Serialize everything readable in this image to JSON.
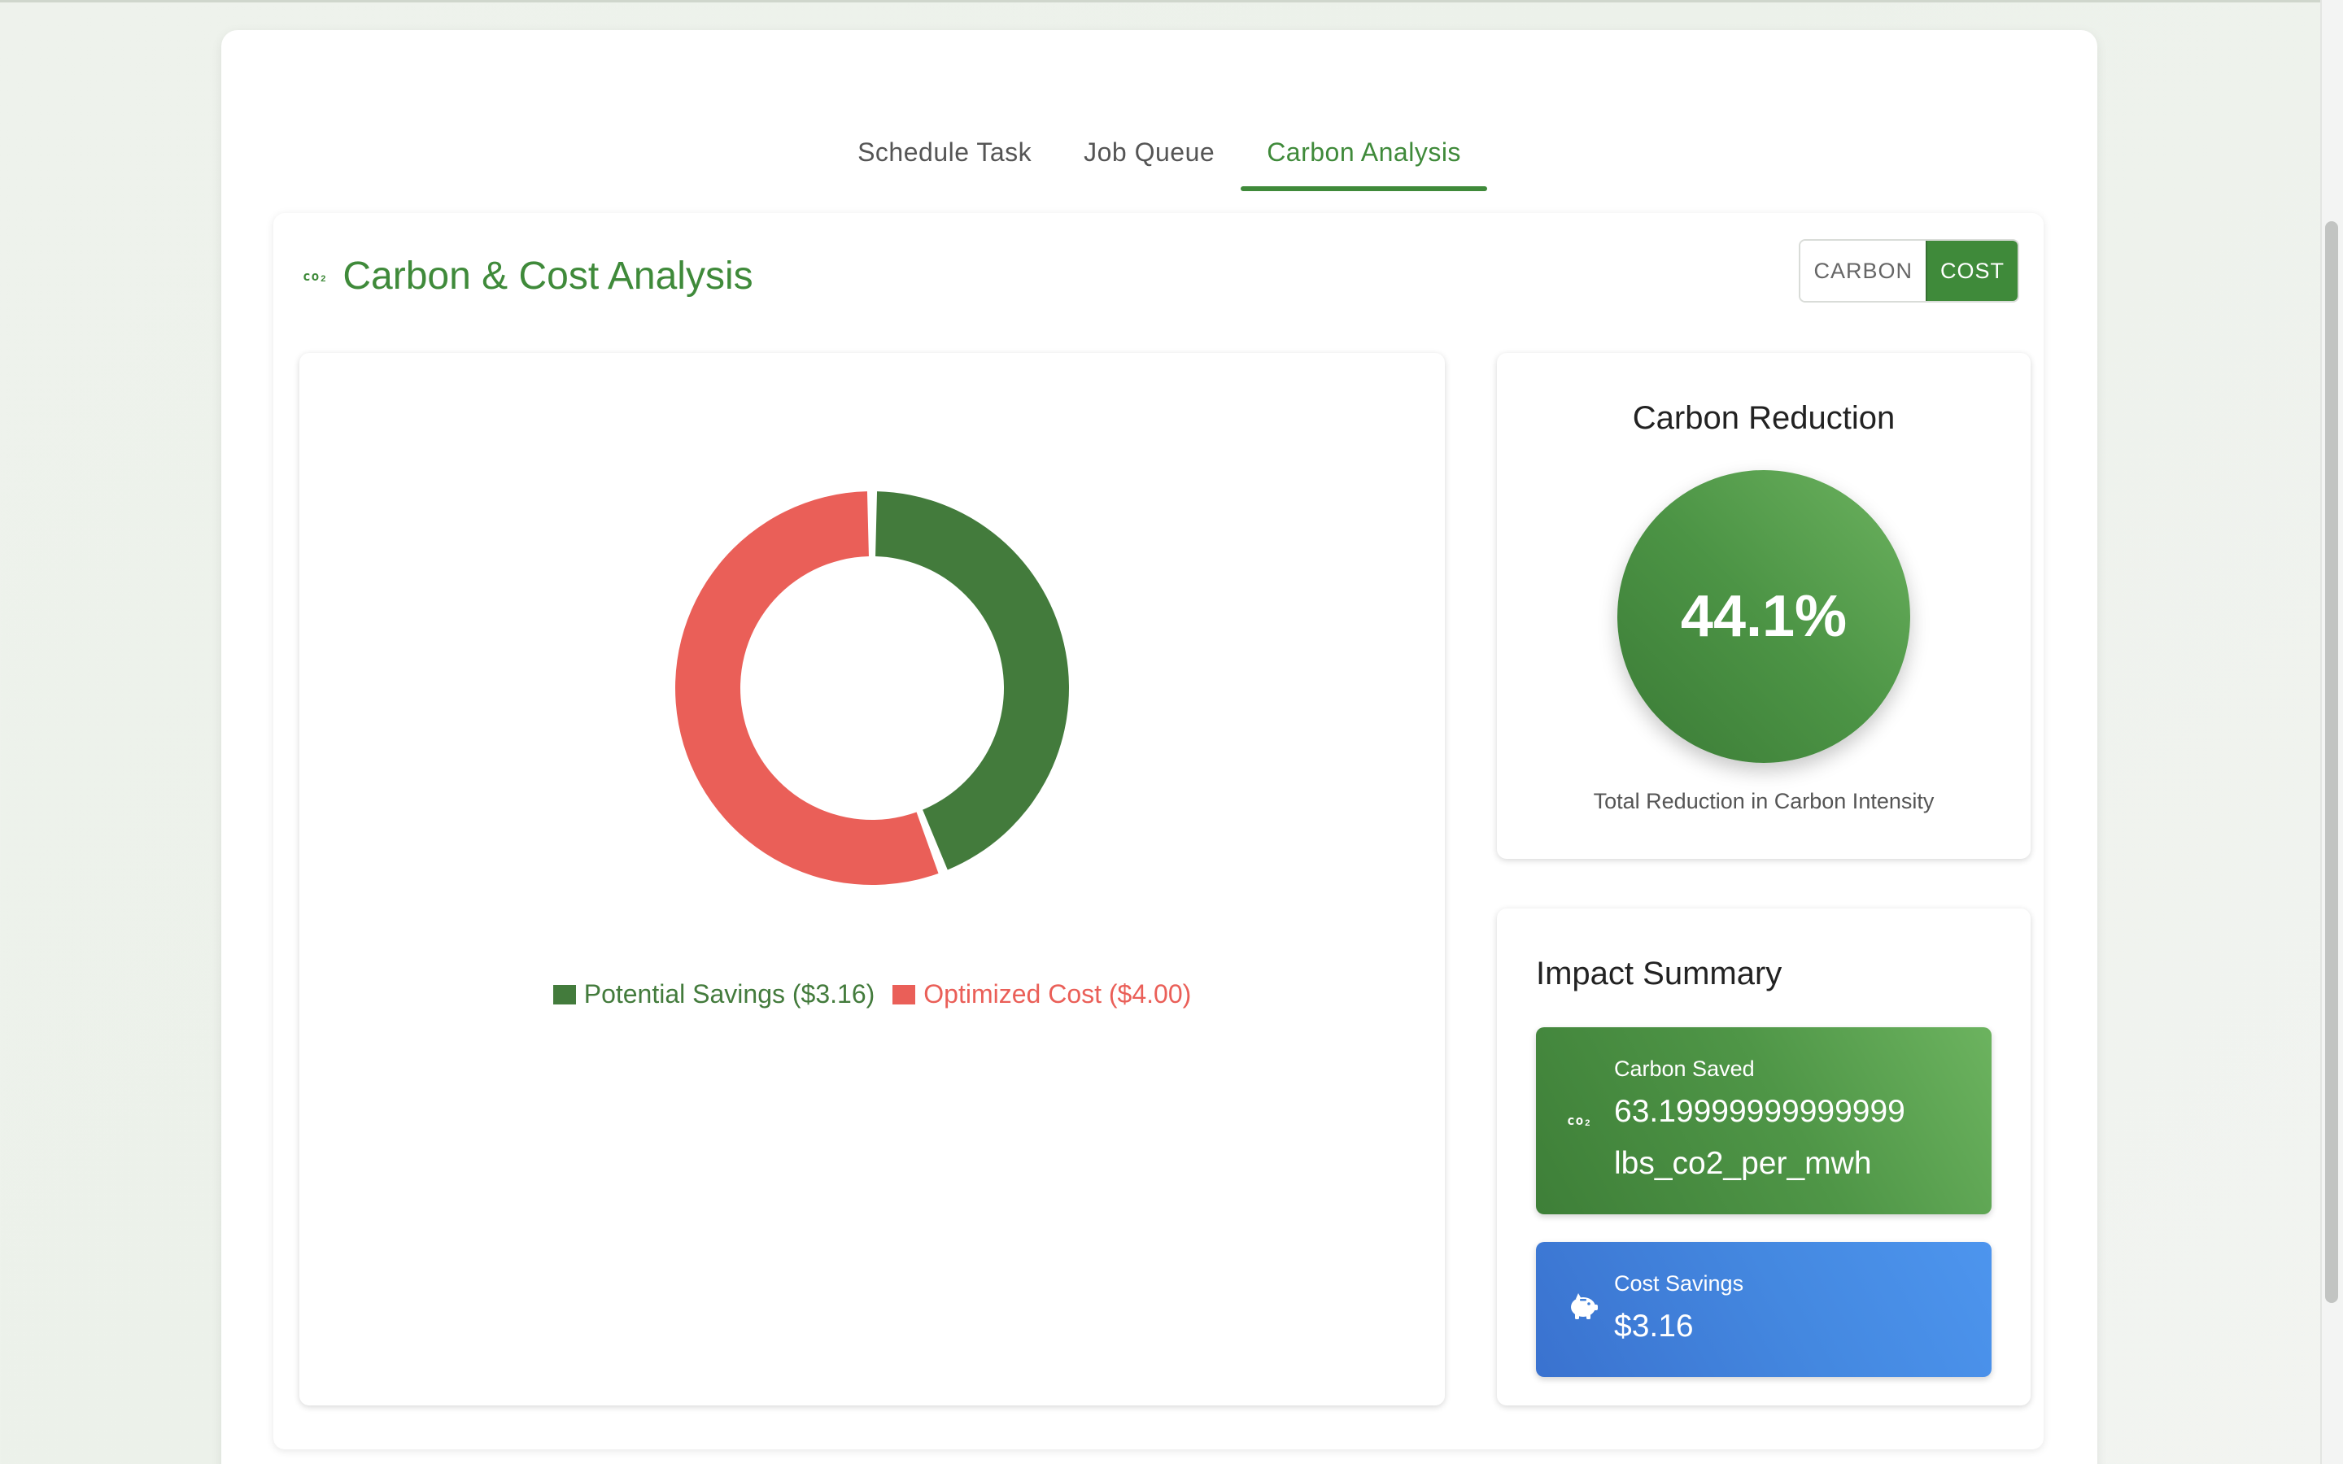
{
  "tabs": [
    {
      "label": "Schedule Task"
    },
    {
      "label": "Job Queue"
    },
    {
      "label": "Carbon Analysis"
    }
  ],
  "analysis": {
    "icon": "co2-icon",
    "title": "Carbon & Cost Analysis",
    "toggle": {
      "carbon": "CARBON",
      "cost": "COST",
      "selected": "cost"
    }
  },
  "chart_data": {
    "type": "pie",
    "categories": [
      "Potential Savings ($3.16)",
      "Optimized Cost ($4.00)"
    ],
    "values": [
      3.16,
      4.0
    ],
    "colors": [
      "#437b3c",
      "#ea5f58"
    ],
    "legend": "bottom"
  },
  "reduction": {
    "title": "Carbon Reduction",
    "value": "44.1%",
    "caption": "Total Reduction in Carbon Intensity"
  },
  "impact": {
    "title": "Impact Summary",
    "carbon_saved": {
      "label": "Carbon Saved",
      "value": "63.19999999999999 lbs_co2_per_mwh",
      "icon": "co2-icon"
    },
    "cost_savings": {
      "label": "Cost Savings",
      "value": "$3.16",
      "icon": "piggy-bank-icon"
    }
  },
  "colors": {
    "accent": "#3f8a3a",
    "savings": "#437b3c",
    "cost": "#ea5f58",
    "blue": "#4488e0"
  }
}
